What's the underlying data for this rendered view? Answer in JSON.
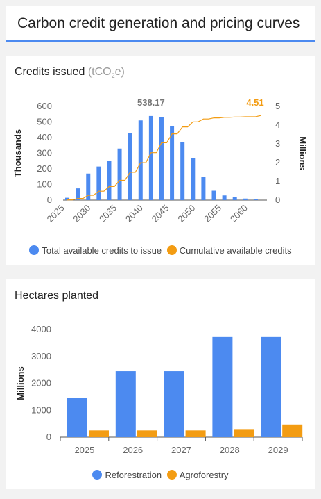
{
  "page": {
    "title": "Carbon credit generation and pricing curves"
  },
  "colors": {
    "blue": "#4c8af0",
    "orange": "#f39c12",
    "accent": "#4c8af0"
  },
  "chart_data": [
    {
      "type": "bar",
      "title": "Credits issued",
      "title_unit_pre": "(tCO",
      "title_unit_sub": "2",
      "title_unit_post": "e)",
      "ylabel": "Thousands",
      "y2label": "Millions",
      "ylim": [
        0,
        600
      ],
      "y2lim": [
        0,
        5
      ],
      "yticks": [
        0,
        100,
        200,
        300,
        400,
        500,
        600
      ],
      "y2ticks": [
        0,
        1,
        2,
        3,
        4,
        5
      ],
      "x": [
        2026,
        2027,
        2028,
        2029,
        2030,
        2031,
        2032,
        2033,
        2034,
        2035,
        2036,
        2037,
        2038,
        2039,
        2040,
        2041,
        2042,
        2043,
        2044,
        2045,
        2046,
        2047,
        2048,
        2049,
        2050,
        2051,
        2052,
        2053,
        2054,
        2055,
        2056,
        2057,
        2058,
        2059,
        2060,
        2061,
        2062,
        2063
      ],
      "xticks": [
        2025,
        2030,
        2035,
        2040,
        2045,
        2050,
        2055,
        2060
      ],
      "grid": false,
      "legend_position": "bottom",
      "series": [
        {
          "name": "Total available credits to issue",
          "axis": "left",
          "type": "bar",
          "values": [
            15,
            0,
            75,
            0,
            170,
            0,
            215,
            0,
            250,
            0,
            330,
            0,
            430,
            0,
            510,
            0,
            538.17,
            0,
            530,
            0,
            475,
            0,
            370,
            0,
            270,
            0,
            150,
            0,
            60,
            0,
            30,
            0,
            20,
            0,
            10,
            0,
            5,
            0
          ]
        },
        {
          "name": "Cumulative available credits",
          "axis": "right",
          "type": "line",
          "values": [
            0.015,
            0.015,
            0.09,
            0.09,
            0.26,
            0.26,
            0.475,
            0.475,
            0.725,
            0.725,
            1.055,
            1.055,
            1.485,
            1.485,
            1.995,
            1.995,
            2.53,
            2.53,
            3.06,
            3.06,
            3.535,
            3.535,
            3.905,
            3.905,
            4.175,
            4.175,
            4.325,
            4.325,
            4.385,
            4.385,
            4.415,
            4.415,
            4.435,
            4.435,
            4.445,
            4.445,
            4.45,
            4.51
          ]
        }
      ],
      "annotations": {
        "bar_peak": "538.17",
        "line_end": "4.51"
      }
    },
    {
      "type": "bar",
      "title": "Hectares planted",
      "ylabel": "Millions",
      "ylim": [
        0,
        4000
      ],
      "yticks": [
        0,
        1000,
        2000,
        3000,
        4000
      ],
      "categories": [
        "2025",
        "2026",
        "2027",
        "2028",
        "2029"
      ],
      "grid": false,
      "legend_position": "bottom",
      "series": [
        {
          "name": "Reforestration",
          "values": [
            1450,
            2450,
            2450,
            3720,
            3720
          ]
        },
        {
          "name": "Agroforestry",
          "values": [
            250,
            250,
            250,
            300,
            470
          ]
        }
      ]
    }
  ]
}
